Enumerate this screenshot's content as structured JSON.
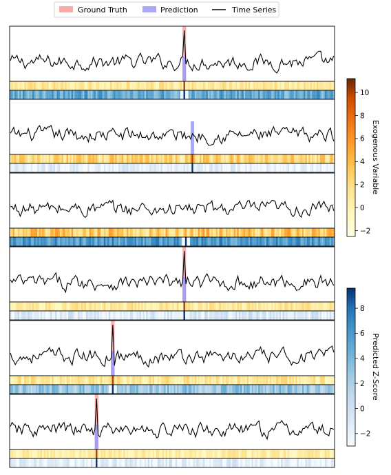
{
  "chart_data": {
    "type": "line",
    "legend": {
      "placement": "top-center",
      "entries": [
        {
          "label": "Ground Truth",
          "color": "#ff9999",
          "kind": "patch"
        },
        {
          "label": "Prediction",
          "color": "#9999ff",
          "kind": "patch"
        },
        {
          "label": "Time Series",
          "color": "#000000",
          "kind": "line"
        }
      ]
    },
    "n_points": 200,
    "panels": [
      {
        "gt_index": 107,
        "pred_index": 107,
        "pred_height": 0.45,
        "exo_high": 85,
        "zscore_base": 0.62
      },
      {
        "gt_index": null,
        "pred_index": 112,
        "pred_height": 0.6,
        "exo_high": 120,
        "zscore_base": 0.08
      },
      {
        "gt_index": null,
        "pred_index": null,
        "pred_height": 0,
        "exo_high": 140,
        "zscore_base": 0.7
      },
      {
        "gt_index": 107,
        "pred_index": 107,
        "pred_height": 0.45,
        "exo_high": 85,
        "zscore_base": 0.15
      },
      {
        "gt_index": 63,
        "pred_index": 63,
        "pred_height": 0.45,
        "exo_high": 90,
        "zscore_base": 0.45
      },
      {
        "gt_index": 53,
        "pred_index": 53,
        "pred_height": 0.45,
        "exo_high": 75,
        "zscore_base": 0.1
      }
    ],
    "colorbars": [
      {
        "label": "Exogenous Variable",
        "cmap": "YlOrBr",
        "range": [
          -2.5,
          11.2
        ],
        "ticks": [
          -2,
          0,
          2,
          4,
          6,
          8,
          10
        ]
      },
      {
        "label": "Predicted Z-Score",
        "cmap": "Blues",
        "range": [
          -3,
          9.6
        ],
        "ticks": [
          -2,
          0,
          2,
          4,
          6,
          8
        ]
      }
    ],
    "grid": false
  }
}
